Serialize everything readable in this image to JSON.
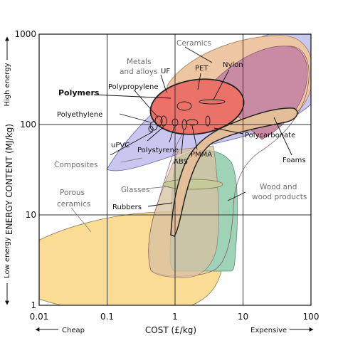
{
  "chart_data": {
    "type": "bubble-map",
    "xlabel": "COST (£/kg)",
    "ylabel": "ENERGY CONTENT (MJ/kg)",
    "x_scale": "log",
    "y_scale": "log",
    "xlim": [
      0.01,
      100
    ],
    "ylim": [
      1,
      1000
    ],
    "x_ticks": [
      "0.01",
      "0.1",
      "1",
      "10",
      "100"
    ],
    "y_ticks": [
      "1",
      "10",
      "100",
      "1000"
    ],
    "grid": true,
    "x_annotations": {
      "left": "Cheap",
      "right": "Expensive"
    },
    "y_annotations": {
      "bottom": "Low energy",
      "top": "High energy"
    },
    "labels": {
      "ceramics": "Ceramics",
      "metals_line1": "Metals",
      "metals_line2": "and alloys",
      "uf": "UF",
      "pet": "PET",
      "nylon": "Nylon",
      "polymers": "Polymers",
      "polypropylene": "Polypropylene",
      "polyethylene": "Polyethylene",
      "upvc": "uPVC",
      "polystyrene": "Polystyrene",
      "abs": "ABS",
      "pmma": "PMMA",
      "polycarbonate": "Polycarbonate",
      "foams": "Foams",
      "composites": "Composites",
      "glasses": "Glasses",
      "wood_line1": "Wood and",
      "wood_line2": "wood products",
      "porous_line1": "Porous",
      "porous_line2": "ceramics",
      "rubbers": "Rubbers"
    },
    "colors": {
      "composites": "#c9c6ef",
      "ceramics": "#edc7a4",
      "metals": "#c98aa4",
      "wood": "#9fd3b7",
      "porous": "#fbdc95",
      "polymers": "#ea7268",
      "rubbers": "#e4bd99",
      "glasses": "#c6c99a",
      "grid": "#333333"
    }
  }
}
